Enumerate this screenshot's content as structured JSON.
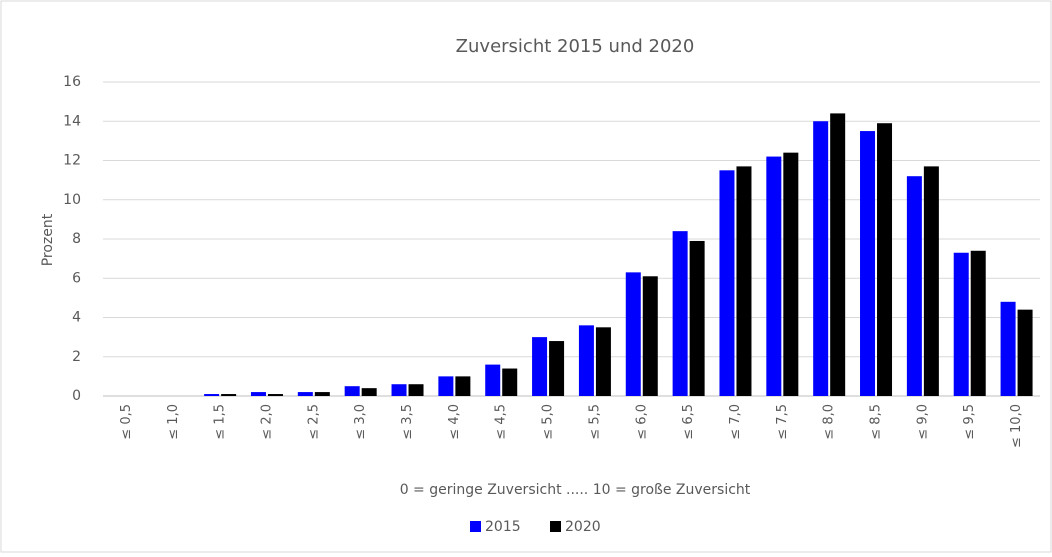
{
  "chart_data": {
    "type": "bar",
    "title": "Zuversicht 2015 und 2020",
    "xlabel": "0 = geringe Zuversicht ..... 10 = große Zuversicht",
    "ylabel": "Prozent",
    "categories": [
      "≤ 0,5",
      "≤ 1,0",
      "≤ 1,5",
      "≤ 2,0",
      "≤ 2,5",
      "≤ 3,0",
      "≤ 3,5",
      "≤ 4,0",
      "≤ 4,5",
      "≤ 5,0",
      "≤ 5,5",
      "≤ 6,0",
      "≤ 6,5",
      "≤ 7,0",
      "≤ 7,5",
      "≤ 8,0",
      "≤ 8,5",
      "≤ 9,0",
      "≤ 9,5",
      "≤ 10,0"
    ],
    "series": [
      {
        "name": "2015",
        "color": "#0000ff",
        "values": [
          0,
          0,
          0.1,
          0.2,
          0.2,
          0.5,
          0.6,
          1.0,
          1.6,
          3.0,
          3.6,
          6.3,
          8.4,
          11.5,
          12.2,
          14.0,
          13.5,
          11.2,
          7.3,
          4.8
        ]
      },
      {
        "name": "2020",
        "color": "#000000",
        "values": [
          0,
          0,
          0.1,
          0.1,
          0.2,
          0.4,
          0.6,
          1.0,
          1.4,
          2.8,
          3.5,
          6.1,
          7.9,
          11.7,
          12.4,
          14.4,
          13.9,
          11.7,
          7.4,
          4.4
        ]
      }
    ],
    "ylim": [
      0,
      16
    ],
    "yticks": [
      0,
      2,
      4,
      6,
      8,
      10,
      12,
      14,
      16
    ],
    "grid": true,
    "legend": "bottom"
  }
}
